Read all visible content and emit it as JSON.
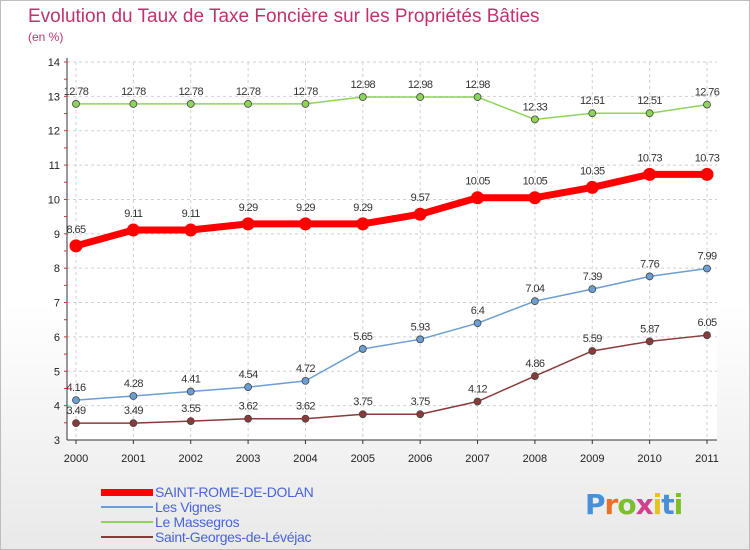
{
  "title": "Evolution du Taux de Taxe Foncière sur les Propriétés Bâties",
  "unit_label": "(en %)",
  "logo": {
    "letters": [
      "P",
      "r",
      "o",
      "x",
      "i",
      "t",
      "i"
    ],
    "colors": [
      "#4a90d9",
      "#e8702a",
      "#7cbf2a",
      "#d63f8c",
      "#e8c020",
      "#4a90d9",
      "#7cbf2a"
    ]
  },
  "chart_data": {
    "type": "line",
    "categories": [
      "2000",
      "2001",
      "2002",
      "2003",
      "2004",
      "2005",
      "2006",
      "2007",
      "2008",
      "2009",
      "2010",
      "2011"
    ],
    "ylim": [
      3,
      14
    ],
    "yticks": [
      "3",
      "4",
      "5",
      "6",
      "7",
      "8",
      "9",
      "10",
      "11",
      "12",
      "13",
      "14"
    ],
    "series": [
      {
        "name": "SAINT-ROME-DE-DOLAN",
        "color": "#ff0000",
        "width": 7,
        "marker": 6.5,
        "values": [
          8.65,
          9.11,
          9.11,
          9.29,
          9.29,
          9.29,
          9.57,
          10.05,
          10.05,
          10.35,
          10.73,
          10.73
        ],
        "labels": [
          "8.65",
          "9.11",
          "9.11",
          "9.29",
          "9.29",
          "9.29",
          "9.57",
          "10.05",
          "10.05",
          "10.35",
          "10.73",
          "10.73"
        ]
      },
      {
        "name": "Les Vignes",
        "color": "#6b9fd4",
        "width": 1.5,
        "marker": 3.5,
        "values": [
          4.16,
          4.28,
          4.41,
          4.54,
          4.72,
          5.65,
          5.93,
          6.4,
          7.04,
          7.39,
          7.76,
          7.99
        ],
        "labels": [
          "4.16",
          "4.28",
          "4.41",
          "4.54",
          "4.72",
          "5.65",
          "5.93",
          "6.4",
          "7.04",
          "7.39",
          "7.76",
          "7.99"
        ]
      },
      {
        "name": "Le Massegros",
        "color": "#8fd45a",
        "width": 1.5,
        "marker": 3.5,
        "values": [
          12.78,
          12.78,
          12.78,
          12.78,
          12.78,
          12.98,
          12.98,
          12.98,
          12.33,
          12.51,
          12.51,
          12.76
        ],
        "labels": [
          "12.78",
          "12.78",
          "12.78",
          "12.78",
          "12.78",
          "12.98",
          "12.98",
          "12.98",
          "12.33",
          "12.51",
          "12.51",
          "12.76"
        ]
      },
      {
        "name": "Saint-Georges-de-Lévéjac",
        "color": "#8b3a3a",
        "width": 1.5,
        "marker": 3.5,
        "values": [
          3.49,
          3.49,
          3.55,
          3.62,
          3.62,
          3.75,
          3.75,
          4.12,
          4.86,
          5.59,
          5.87,
          6.05
        ],
        "labels": [
          "3.49",
          "3.49",
          "3.55",
          "3.62",
          "3.62",
          "3.75",
          "3.75",
          "4.12",
          "4.86",
          "5.59",
          "5.87",
          "6.05"
        ]
      }
    ]
  }
}
